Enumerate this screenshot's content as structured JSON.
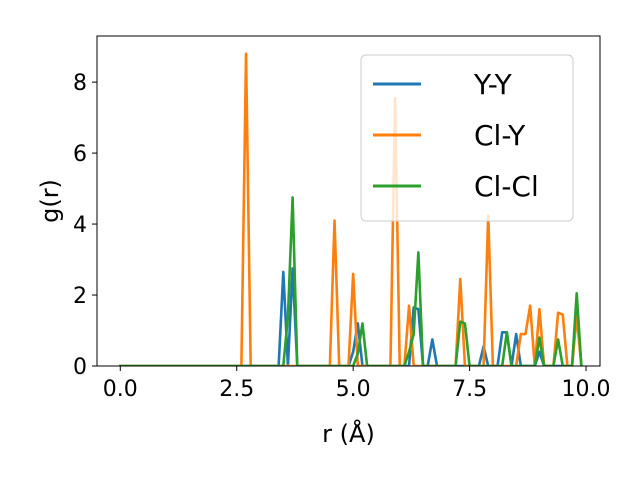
{
  "chart_data": {
    "type": "line",
    "title": "",
    "xlabel": "r (Å)",
    "ylabel": "g(r)",
    "xlim": [
      -0.5,
      10.3
    ],
    "ylim": [
      0,
      9.3
    ],
    "xticks": [
      0.0,
      2.5,
      5.0,
      7.5,
      10.0
    ],
    "xtick_labels": [
      "0.0",
      "2.5",
      "5.0",
      "7.5",
      "10.0"
    ],
    "yticks": [
      0,
      2,
      4,
      6,
      8
    ],
    "ytick_labels": [
      "0",
      "2",
      "4",
      "6",
      "8"
    ],
    "grid": false,
    "legend_position": "top-right",
    "series": [
      {
        "name": "Y-Y",
        "color": "#1f77b4",
        "x": [
          0,
          3.4,
          3.5,
          3.6,
          3.7,
          3.8,
          3.9,
          4.9,
          5.0,
          5.1,
          5.2,
          5.3,
          6.2,
          6.3,
          6.4,
          6.5,
          6.6,
          6.7,
          6.8,
          7.7,
          7.8,
          7.9,
          8.1,
          8.2,
          8.3,
          8.4,
          8.5,
          8.6,
          8.9,
          9.0,
          9.1,
          9.7,
          9.8,
          9.9
        ],
        "y": [
          0,
          0,
          2.65,
          0,
          2.75,
          0,
          0,
          0,
          0.4,
          1.2,
          0,
          0,
          0,
          1.65,
          1.6,
          0,
          0,
          0.75,
          0,
          0,
          0.55,
          0,
          0,
          0.95,
          0.95,
          0,
          0.9,
          0,
          0,
          0.4,
          0,
          0,
          1.7,
          0
        ]
      },
      {
        "name": "Cl-Y",
        "color": "#ff7f0e",
        "x": [
          0,
          2.6,
          2.7,
          2.8,
          4.5,
          4.6,
          4.7,
          4.9,
          5.0,
          5.1,
          5.8,
          5.9,
          6.0,
          6.1,
          6.2,
          6.3,
          6.4,
          7.2,
          7.3,
          7.4,
          7.8,
          7.9,
          8.0,
          8.5,
          8.6,
          8.7,
          8.8,
          8.9,
          9.0,
          9.1,
          9.3,
          9.4,
          9.5,
          9.6,
          9.7,
          9.8,
          9.9
        ],
        "y": [
          0,
          0,
          8.8,
          0,
          0,
          4.1,
          0,
          0,
          2.6,
          0,
          0,
          7.55,
          0,
          0,
          1.7,
          0,
          0,
          0,
          2.45,
          0,
          0,
          4.25,
          0,
          0,
          0.9,
          0.9,
          1.7,
          0,
          1.6,
          0,
          0,
          1.5,
          1.45,
          0,
          0,
          1.4,
          0
        ]
      },
      {
        "name": "Cl-Cl",
        "color": "#2ca02c",
        "x": [
          0,
          3.5,
          3.6,
          3.7,
          3.8,
          5.0,
          5.1,
          5.2,
          5.3,
          6.1,
          6.2,
          6.3,
          6.4,
          6.5,
          7.2,
          7.3,
          7.4,
          7.5,
          8.2,
          8.3,
          8.4,
          8.9,
          9.0,
          9.1,
          9.3,
          9.4,
          9.5,
          9.7,
          9.8,
          9.9
        ],
        "y": [
          0,
          0,
          1.4,
          4.75,
          0,
          0,
          0.35,
          1.2,
          0,
          0,
          0.4,
          0.9,
          3.2,
          0,
          0,
          1.25,
          1.2,
          0,
          0,
          0.95,
          0,
          0,
          0.8,
          0,
          0,
          0.75,
          0,
          0,
          2.05,
          0
        ]
      }
    ]
  }
}
